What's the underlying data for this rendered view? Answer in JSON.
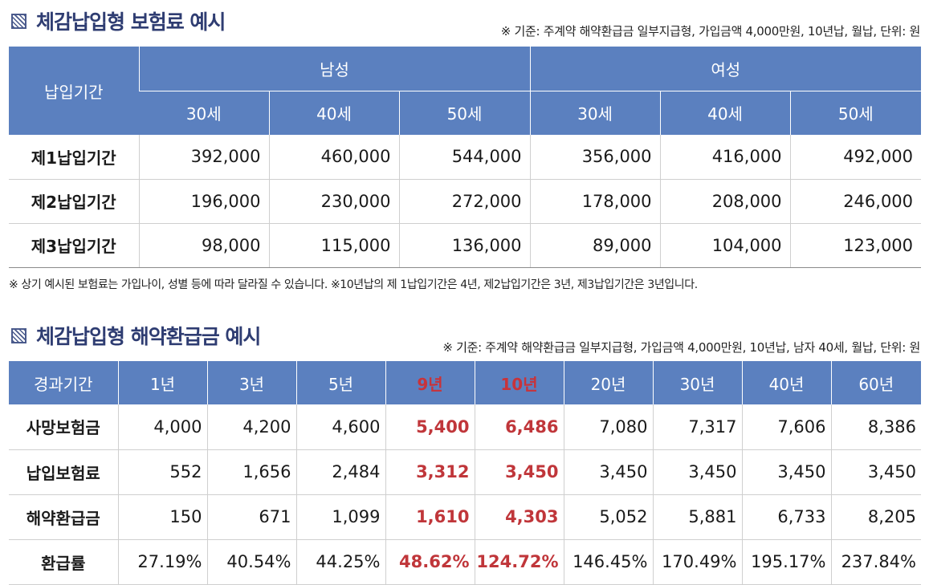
{
  "section1": {
    "title": "체감납입형 보험료 예시",
    "basis": "※ 기준: 주계약 해약환급금 일부지급형, 가입금액 4,000만원, 10년납, 월납, 단위: 원",
    "period_header": "납입기간",
    "groups": [
      "남성",
      "여성"
    ],
    "ages": [
      "30세",
      "40세",
      "50세",
      "30세",
      "40세",
      "50세"
    ],
    "rows": [
      {
        "label": "제1납입기간",
        "values": [
          "392,000",
          "460,000",
          "544,000",
          "356,000",
          "416,000",
          "492,000"
        ]
      },
      {
        "label": "제2납입기간",
        "values": [
          "196,000",
          "230,000",
          "272,000",
          "178,000",
          "208,000",
          "246,000"
        ]
      },
      {
        "label": "제3납입기간",
        "values": [
          "98,000",
          "115,000",
          "136,000",
          "89,000",
          "104,000",
          "123,000"
        ]
      }
    ],
    "note": "※ 상기 예시된 보험료는 가입나이, 성별 등에 따라 달라질 수 있습니다. ※10년납의 제 1납입기간은 4년, 제2납입기간은 3년, 제3납입기간은 3년입니다."
  },
  "section2": {
    "title": "체감납입형 해약환급금 예시",
    "basis": "※ 기준: 주계약 해약환급금 일부지급형, 가입금액 4,000만원, 10년납, 남자 40세, 월납, 단위: 원",
    "first_header": "경과기간",
    "headers": [
      "1년",
      "3년",
      "5년",
      "9년",
      "10년",
      "20년",
      "30년",
      "40년",
      "60년"
    ],
    "highlight_columns": [
      3,
      4
    ],
    "highlight_color": "#c0363a",
    "header_color": "#5b80bf",
    "rows": [
      {
        "label": "사망보험금",
        "values": [
          "4,000",
          "4,200",
          "4,600",
          "5,400",
          "6,486",
          "7,080",
          "7,317",
          "7,606",
          "8,386"
        ]
      },
      {
        "label": "납입보험료",
        "values": [
          "552",
          "1,656",
          "2,484",
          "3,312",
          "3,450",
          "3,450",
          "3,450",
          "3,450",
          "3,450"
        ]
      },
      {
        "label": "해약환급금",
        "values": [
          "150",
          "671",
          "1,099",
          "1,610",
          "4,303",
          "5,052",
          "5,881",
          "6,733",
          "8,205"
        ]
      },
      {
        "label": "환급률",
        "values": [
          "27.19%",
          "40.54%",
          "44.25%",
          "48.62%",
          "124.72%",
          "146.45%",
          "170.49%",
          "195.17%",
          "237.84%"
        ]
      }
    ],
    "title_icon": "hatched-square-icon"
  }
}
